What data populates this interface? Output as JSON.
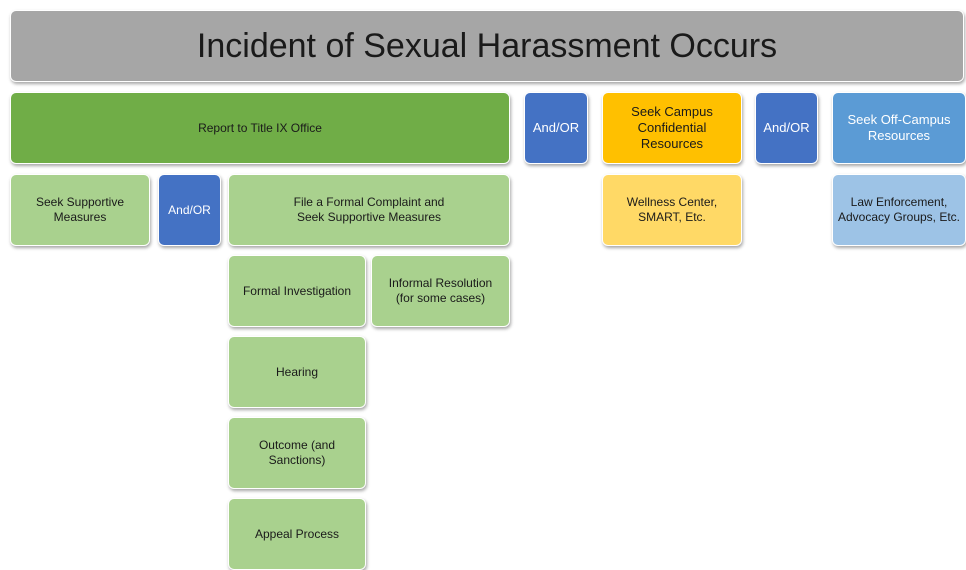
{
  "title": "Incident of Sexual Harassment Occurs",
  "nodes": [
    {
      "label": "Report to Title IX Office"
    },
    {
      "label": "And/OR"
    },
    {
      "label": "Seek Campus\nConfidential\nResources"
    },
    {
      "label": "And/OR"
    },
    {
      "label": "Seek Off-Campus\nResources"
    },
    {
      "label": "Seek Supportive\nMeasures"
    },
    {
      "label": "And/OR"
    },
    {
      "label": "File a Formal Complaint and\nSeek Supportive Measures"
    },
    {
      "label": "Wellness Center,\nSMART, Etc."
    },
    {
      "label": "Law Enforcement,\nAdvocacy Groups, Etc."
    },
    {
      "label": "Formal Investigation"
    },
    {
      "label": "Informal Resolution\n(for some cases)"
    },
    {
      "label": "Hearing"
    },
    {
      "label": "Outcome (and\nSanctions)"
    },
    {
      "label": "Appeal Process"
    }
  ]
}
